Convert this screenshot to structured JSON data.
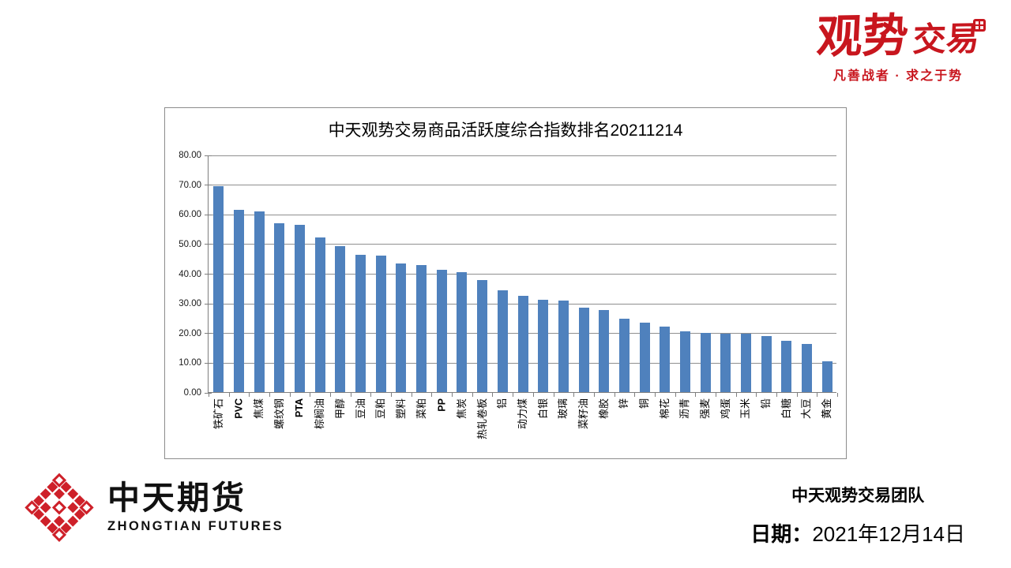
{
  "brand_top_right": {
    "logo_text_main": "观势",
    "logo_text_sub": "交易",
    "seal_icon": "red-seal-stamp",
    "tagline": "凡善战者 · 求之于势",
    "accent_color": "#C8161E"
  },
  "chart_data": {
    "type": "bar",
    "title": "中天观势交易商品活跃度综合指数排名20211214",
    "categories": [
      "铁矿石",
      "PVC",
      "焦煤",
      "螺纹钢",
      "PTA",
      "棕榈油",
      "甲醇",
      "豆油",
      "豆粕",
      "塑料",
      "菜粕",
      "PP",
      "焦炭",
      "热轧卷板",
      "铝",
      "动力煤",
      "白银",
      "玻璃",
      "菜籽油",
      "橡胶",
      "锌",
      "铜",
      "棉花",
      "沥青",
      "强麦",
      "鸡蛋",
      "玉米",
      "铅",
      "白糖",
      "大豆",
      "黄金"
    ],
    "values": [
      69.5,
      61.5,
      61.0,
      56.8,
      56.4,
      52.2,
      49.1,
      46.2,
      45.9,
      43.2,
      42.8,
      41.3,
      40.4,
      37.8,
      34.4,
      32.5,
      31.0,
      30.8,
      28.4,
      27.7,
      24.8,
      23.3,
      22.0,
      20.5,
      20.0,
      19.7,
      19.6,
      18.8,
      17.3,
      16.2,
      10.4
    ],
    "xlabel": "",
    "ylabel": "",
    "ylim": [
      0,
      80
    ],
    "ytick_step": 10,
    "ytick_labels": [
      "0.00",
      "10.00",
      "20.00",
      "30.00",
      "40.00",
      "50.00",
      "60.00",
      "70.00",
      "80.00"
    ],
    "grid": true,
    "legend_position": "none",
    "bar_color": "#4F81BD"
  },
  "footer_left": {
    "logo_icon": "zhongtian-diamond-maze-logo",
    "logo_color": "#CE2029",
    "company_cn": "中天期货",
    "company_en": "ZHONGTIAN FUTURES"
  },
  "footer_right": {
    "team": "中天观势交易团队",
    "date_label": "日期：",
    "date_value": "2021年12月14日"
  }
}
